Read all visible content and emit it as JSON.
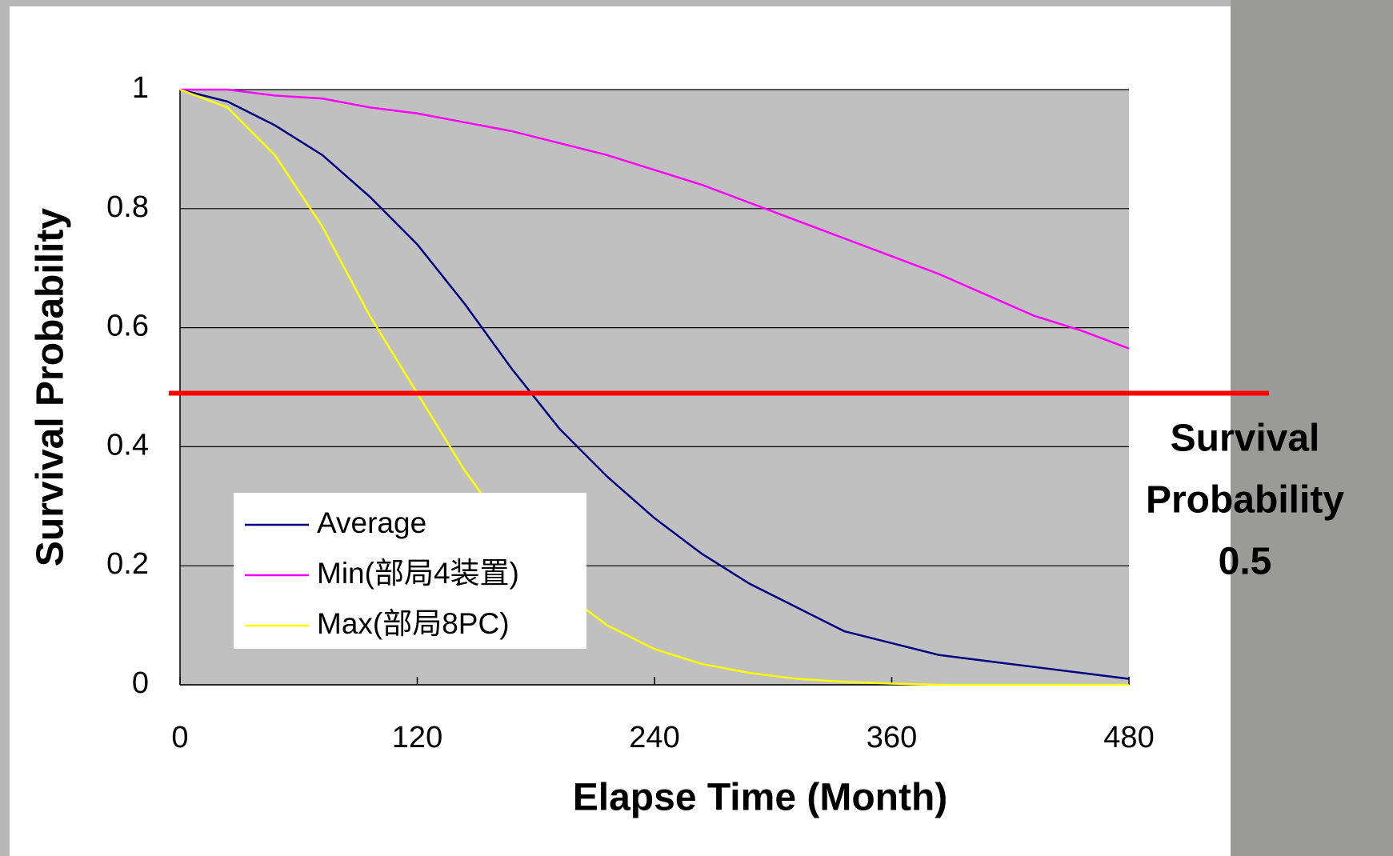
{
  "chart_data": {
    "type": "line",
    "x_label": "Elapse Time (Month)",
    "y_label": "Survival Probability",
    "x": [
      0,
      24,
      48,
      72,
      96,
      120,
      144,
      168,
      192,
      216,
      240,
      264,
      288,
      312,
      336,
      360,
      384,
      408,
      432,
      456,
      480
    ],
    "series": [
      {
        "name": "Average",
        "color": "#000080",
        "values": [
          1,
          0.98,
          0.94,
          0.89,
          0.82,
          0.74,
          0.64,
          0.53,
          0.43,
          0.35,
          0.28,
          0.22,
          0.17,
          0.13,
          0.09,
          0.07,
          0.05,
          0.04,
          0.03,
          0.02,
          0.01
        ]
      },
      {
        "name": "Min(部局4装置)",
        "color": "#ff00ff",
        "values": [
          1,
          1,
          0.99,
          0.985,
          0.97,
          0.96,
          0.945,
          0.93,
          0.91,
          0.89,
          0.865,
          0.84,
          0.81,
          0.78,
          0.75,
          0.72,
          0.69,
          0.655,
          0.62,
          0.595,
          0.565
        ]
      },
      {
        "name": "Max(部局8PC)",
        "color": "#ffff00",
        "values": [
          1,
          0.97,
          0.89,
          0.77,
          0.62,
          0.49,
          0.36,
          0.25,
          0.16,
          0.1,
          0.06,
          0.035,
          0.02,
          0.01,
          0.005,
          0.002,
          0,
          0,
          0,
          0,
          0
        ]
      }
    ],
    "xlim": [
      0,
      480
    ],
    "xticks": [
      0,
      120,
      240,
      360,
      480
    ],
    "ylim": [
      0,
      1
    ],
    "yticks": [
      0,
      0.2,
      0.4,
      0.6,
      0.8,
      1
    ],
    "grid": true,
    "plot_background": "#c0c0c0",
    "reference_line": {
      "value": 0.49,
      "color": "#ff0000"
    },
    "annotation": [
      "Survival",
      "Probability",
      "0.5"
    ],
    "legend_position": "lower left"
  }
}
